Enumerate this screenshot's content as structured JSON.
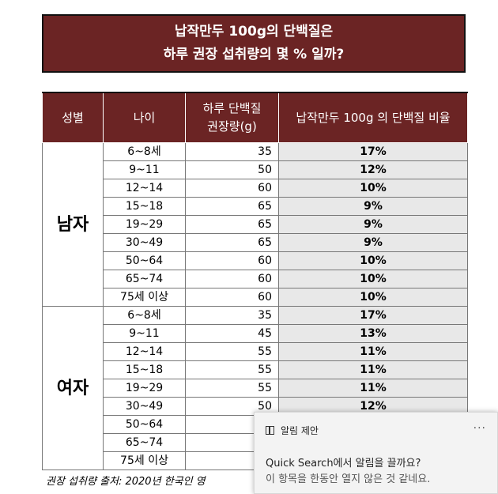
{
  "title": {
    "line1": "납작만두 100g의 단백질은",
    "line2": "하루 권장 섭취량의 몇 % 일까?"
  },
  "table": {
    "headers": {
      "sex": "성별",
      "age": "나이",
      "rec_line1": "하루 단백질",
      "rec_line2": "권장량(g)",
      "pct": "납작만두 100g 의 단백질 비율"
    },
    "groups": [
      {
        "sex": "남자",
        "rows": [
          {
            "age": "6~8세",
            "rec": "35",
            "pct": "17%"
          },
          {
            "age": "9~11",
            "rec": "50",
            "pct": "12%"
          },
          {
            "age": "12~14",
            "rec": "60",
            "pct": "10%"
          },
          {
            "age": "15~18",
            "rec": "65",
            "pct": "9%"
          },
          {
            "age": "19~29",
            "rec": "65",
            "pct": "9%"
          },
          {
            "age": "30~49",
            "rec": "65",
            "pct": "9%"
          },
          {
            "age": "50~64",
            "rec": "60",
            "pct": "10%"
          },
          {
            "age": "65~74",
            "rec": "60",
            "pct": "10%"
          },
          {
            "age": "75세 이상",
            "rec": "60",
            "pct": "10%"
          }
        ]
      },
      {
        "sex": "여자",
        "rows": [
          {
            "age": "6~8세",
            "rec": "35",
            "pct": "17%"
          },
          {
            "age": "9~11",
            "rec": "45",
            "pct": "13%"
          },
          {
            "age": "12~14",
            "rec": "55",
            "pct": "11%"
          },
          {
            "age": "15~18",
            "rec": "55",
            "pct": "11%"
          },
          {
            "age": "19~29",
            "rec": "55",
            "pct": "11%"
          },
          {
            "age": "30~49",
            "rec": "50",
            "pct": "12%"
          },
          {
            "age": "50~64",
            "rec": "",
            "pct": ""
          },
          {
            "age": "65~74",
            "rec": "",
            "pct": ""
          },
          {
            "age": "75세 이상",
            "rec": "",
            "pct": ""
          }
        ]
      }
    ]
  },
  "source": "권장 섭취량 출처: 2020년 한국인 영",
  "toast": {
    "header": "알림 제안",
    "more": "···",
    "question": "Quick Search에서 알림을 끌까요?",
    "detail": "이 항목을 한동안 열지 않은 것 같네요."
  }
}
